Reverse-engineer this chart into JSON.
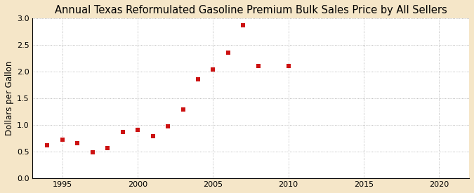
{
  "title": "Annual Texas Reformulated Gasoline Premium Bulk Sales Price by All Sellers",
  "ylabel": "Dollars per Gallon",
  "figure_bg": "#f5e6c8",
  "plot_bg": "#ffffff",
  "years": [
    1994,
    1995,
    1996,
    1997,
    1998,
    1999,
    2000,
    2001,
    2002,
    2003,
    2004,
    2005,
    2006,
    2007,
    2008,
    2010
  ],
  "values": [
    0.62,
    0.72,
    0.65,
    0.49,
    0.57,
    0.87,
    0.9,
    0.79,
    0.97,
    1.29,
    1.86,
    2.04,
    2.35,
    2.87,
    2.1,
    2.1
  ],
  "marker_color": "#cc1111",
  "marker_size": 4,
  "xlim": [
    1993,
    2022
  ],
  "ylim": [
    0.0,
    3.0
  ],
  "xticks": [
    1995,
    2000,
    2005,
    2010,
    2015,
    2020
  ],
  "yticks": [
    0.0,
    0.5,
    1.0,
    1.5,
    2.0,
    2.5,
    3.0
  ],
  "title_fontsize": 10.5,
  "label_fontsize": 8.5,
  "tick_fontsize": 8,
  "source_fontsize": 7.5
}
